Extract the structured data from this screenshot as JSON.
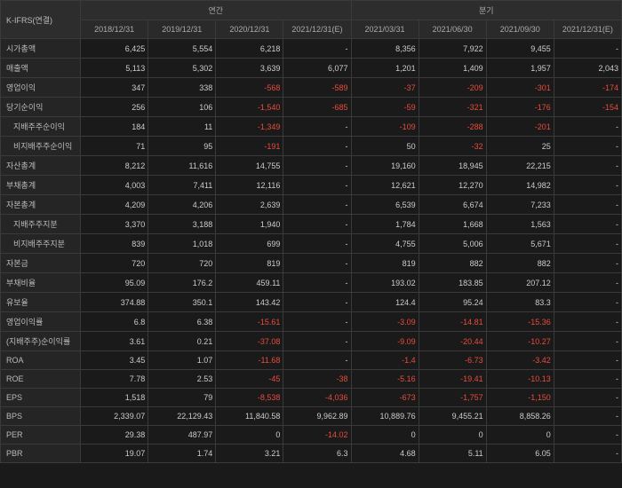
{
  "table": {
    "title_label": "K-IFRS(연결)",
    "group_headers": [
      "연간",
      "분기"
    ],
    "col_headers": [
      "2018/12/31",
      "2019/12/31",
      "2020/12/31",
      "2021/12/31(E)",
      "2021/03/31",
      "2021/06/30",
      "2021/09/30",
      "2021/12/31(E)"
    ],
    "rows": [
      {
        "label": "시가총액",
        "indent": false,
        "cells": [
          {
            "v": "6,425"
          },
          {
            "v": "5,554"
          },
          {
            "v": "6,218"
          },
          {
            "v": "-"
          },
          {
            "v": "8,356"
          },
          {
            "v": "7,922"
          },
          {
            "v": "9,455"
          },
          {
            "v": "-"
          }
        ]
      },
      {
        "label": "매출액",
        "indent": false,
        "cells": [
          {
            "v": "5,113"
          },
          {
            "v": "5,302"
          },
          {
            "v": "3,639"
          },
          {
            "v": "6,077"
          },
          {
            "v": "1,201"
          },
          {
            "v": "1,409"
          },
          {
            "v": "1,957"
          },
          {
            "v": "2,043"
          }
        ]
      },
      {
        "label": "영업이익",
        "indent": false,
        "cells": [
          {
            "v": "347"
          },
          {
            "v": "338"
          },
          {
            "v": "-568",
            "neg": true
          },
          {
            "v": "-589",
            "neg": true
          },
          {
            "v": "-37",
            "neg": true
          },
          {
            "v": "-209",
            "neg": true
          },
          {
            "v": "-301",
            "neg": true
          },
          {
            "v": "-174",
            "neg": true
          }
        ]
      },
      {
        "label": "당기순이익",
        "indent": false,
        "cells": [
          {
            "v": "256"
          },
          {
            "v": "106"
          },
          {
            "v": "-1,540",
            "neg": true
          },
          {
            "v": "-685",
            "neg": true
          },
          {
            "v": "-59",
            "neg": true
          },
          {
            "v": "-321",
            "neg": true
          },
          {
            "v": "-176",
            "neg": true
          },
          {
            "v": "-154",
            "neg": true
          }
        ]
      },
      {
        "label": "지배주주순이익",
        "indent": true,
        "cells": [
          {
            "v": "184"
          },
          {
            "v": "11"
          },
          {
            "v": "-1,349",
            "neg": true
          },
          {
            "v": "-"
          },
          {
            "v": "-109",
            "neg": true
          },
          {
            "v": "-288",
            "neg": true
          },
          {
            "v": "-201",
            "neg": true
          },
          {
            "v": "-"
          }
        ]
      },
      {
        "label": "비지배주주순이익",
        "indent": true,
        "cells": [
          {
            "v": "71"
          },
          {
            "v": "95"
          },
          {
            "v": "-191",
            "neg": true
          },
          {
            "v": "-"
          },
          {
            "v": "50"
          },
          {
            "v": "-32",
            "neg": true
          },
          {
            "v": "25"
          },
          {
            "v": "-"
          }
        ]
      },
      {
        "label": "자산총계",
        "indent": false,
        "cells": [
          {
            "v": "8,212"
          },
          {
            "v": "11,616"
          },
          {
            "v": "14,755"
          },
          {
            "v": "-"
          },
          {
            "v": "19,160"
          },
          {
            "v": "18,945"
          },
          {
            "v": "22,215"
          },
          {
            "v": "-"
          }
        ]
      },
      {
        "label": "부채총계",
        "indent": false,
        "cells": [
          {
            "v": "4,003"
          },
          {
            "v": "7,411"
          },
          {
            "v": "12,116"
          },
          {
            "v": "-"
          },
          {
            "v": "12,621"
          },
          {
            "v": "12,270"
          },
          {
            "v": "14,982"
          },
          {
            "v": "-"
          }
        ]
      },
      {
        "label": "자본총계",
        "indent": false,
        "cells": [
          {
            "v": "4,209"
          },
          {
            "v": "4,206"
          },
          {
            "v": "2,639"
          },
          {
            "v": "-"
          },
          {
            "v": "6,539"
          },
          {
            "v": "6,674"
          },
          {
            "v": "7,233"
          },
          {
            "v": "-"
          }
        ]
      },
      {
        "label": "지배주주지분",
        "indent": true,
        "cells": [
          {
            "v": "3,370"
          },
          {
            "v": "3,188"
          },
          {
            "v": "1,940"
          },
          {
            "v": "-"
          },
          {
            "v": "1,784"
          },
          {
            "v": "1,668"
          },
          {
            "v": "1,563"
          },
          {
            "v": "-"
          }
        ]
      },
      {
        "label": "비지배주주지분",
        "indent": true,
        "cells": [
          {
            "v": "839"
          },
          {
            "v": "1,018"
          },
          {
            "v": "699"
          },
          {
            "v": "-"
          },
          {
            "v": "4,755"
          },
          {
            "v": "5,006"
          },
          {
            "v": "5,671"
          },
          {
            "v": "-"
          }
        ]
      },
      {
        "label": "자본금",
        "indent": false,
        "cells": [
          {
            "v": "720"
          },
          {
            "v": "720"
          },
          {
            "v": "819"
          },
          {
            "v": "-"
          },
          {
            "v": "819"
          },
          {
            "v": "882"
          },
          {
            "v": "882"
          },
          {
            "v": "-"
          }
        ]
      },
      {
        "label": "부채비율",
        "indent": false,
        "cells": [
          {
            "v": "95.09"
          },
          {
            "v": "176.2"
          },
          {
            "v": "459.11"
          },
          {
            "v": "-"
          },
          {
            "v": "193.02"
          },
          {
            "v": "183.85"
          },
          {
            "v": "207.12"
          },
          {
            "v": "-"
          }
        ]
      },
      {
        "label": "유보율",
        "indent": false,
        "cells": [
          {
            "v": "374.88"
          },
          {
            "v": "350.1"
          },
          {
            "v": "143.42"
          },
          {
            "v": "-"
          },
          {
            "v": "124.4"
          },
          {
            "v": "95.24"
          },
          {
            "v": "83.3"
          },
          {
            "v": "-"
          }
        ]
      },
      {
        "label": "영업이익률",
        "indent": false,
        "cells": [
          {
            "v": "6.8"
          },
          {
            "v": "6.38"
          },
          {
            "v": "-15.61",
            "neg": true
          },
          {
            "v": "-"
          },
          {
            "v": "-3.09",
            "neg": true
          },
          {
            "v": "-14.81",
            "neg": true
          },
          {
            "v": "-15.36",
            "neg": true
          },
          {
            "v": "-"
          }
        ]
      },
      {
        "label": "(지배주주)순이익률",
        "indent": false,
        "cells": [
          {
            "v": "3.61"
          },
          {
            "v": "0.21"
          },
          {
            "v": "-37.08",
            "neg": true
          },
          {
            "v": "-"
          },
          {
            "v": "-9.09",
            "neg": true
          },
          {
            "v": "-20.44",
            "neg": true
          },
          {
            "v": "-10.27",
            "neg": true
          },
          {
            "v": "-"
          }
        ]
      },
      {
        "label": "ROA",
        "indent": false,
        "cells": [
          {
            "v": "3.45"
          },
          {
            "v": "1.07"
          },
          {
            "v": "-11.68",
            "neg": true
          },
          {
            "v": "-"
          },
          {
            "v": "-1.4",
            "neg": true
          },
          {
            "v": "-6.73",
            "neg": true
          },
          {
            "v": "-3.42",
            "neg": true
          },
          {
            "v": "-"
          }
        ]
      },
      {
        "label": "ROE",
        "indent": false,
        "cells": [
          {
            "v": "7.78"
          },
          {
            "v": "2.53"
          },
          {
            "v": "-45",
            "neg": true
          },
          {
            "v": "-38",
            "neg": true
          },
          {
            "v": "-5.16",
            "neg": true
          },
          {
            "v": "-19.41",
            "neg": true
          },
          {
            "v": "-10.13",
            "neg": true
          },
          {
            "v": "-"
          }
        ]
      },
      {
        "label": "EPS",
        "indent": false,
        "cells": [
          {
            "v": "1,518"
          },
          {
            "v": "79"
          },
          {
            "v": "-8,538",
            "neg": true
          },
          {
            "v": "-4,036",
            "neg": true
          },
          {
            "v": "-673",
            "neg": true
          },
          {
            "v": "-1,757",
            "neg": true
          },
          {
            "v": "-1,150",
            "neg": true
          },
          {
            "v": "-"
          }
        ]
      },
      {
        "label": "BPS",
        "indent": false,
        "cells": [
          {
            "v": "2,339.07"
          },
          {
            "v": "22,129.43"
          },
          {
            "v": "11,840.58"
          },
          {
            "v": "9,962.89"
          },
          {
            "v": "10,889.76"
          },
          {
            "v": "9,455.21"
          },
          {
            "v": "8,858.26"
          },
          {
            "v": "-"
          }
        ]
      },
      {
        "label": "PER",
        "indent": false,
        "cells": [
          {
            "v": "29.38"
          },
          {
            "v": "487.97"
          },
          {
            "v": "0"
          },
          {
            "v": "-14.02",
            "neg": true
          },
          {
            "v": "0"
          },
          {
            "v": "0"
          },
          {
            "v": "0"
          },
          {
            "v": "-"
          }
        ]
      },
      {
        "label": "PBR",
        "indent": false,
        "cells": [
          {
            "v": "19.07"
          },
          {
            "v": "1.74"
          },
          {
            "v": "3.21"
          },
          {
            "v": "6.3"
          },
          {
            "v": "4.68"
          },
          {
            "v": "5.11"
          },
          {
            "v": "6.05"
          },
          {
            "v": "-"
          }
        ]
      }
    ]
  },
  "colors": {
    "bg": "#1a1a1a",
    "border": "#3a3a3a",
    "text": "#cccccc",
    "neg": "#e74c3c",
    "header_bg": "#2a2a2a",
    "label_bg": "#252525"
  }
}
